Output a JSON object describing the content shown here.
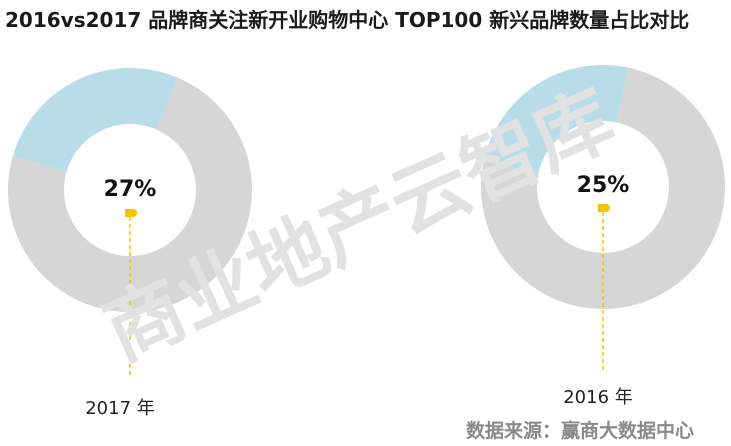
{
  "title": "2016vs2017 品牌商关注新开业购物中心 TOP100 新兴品牌数量占比对比",
  "source": "数据来源：赢商大数据中心",
  "watermark": "商业地产云智库",
  "colors": {
    "emerging": "#b8dde8",
    "other": "#d6d6d6",
    "marker": "#f2c400",
    "background": "#ffffff"
  },
  "chart_data": [
    {
      "type": "pie",
      "subtype": "donut",
      "label": "2017 年",
      "center_label": "27%",
      "values": [
        27,
        73
      ],
      "colors": [
        "#b8dde8",
        "#d6d6d6"
      ]
    },
    {
      "type": "pie",
      "subtype": "donut",
      "label": "2016 年",
      "center_label": "25%",
      "values": [
        25,
        75
      ],
      "colors": [
        "#b8dde8",
        "#d6d6d6"
      ]
    }
  ]
}
